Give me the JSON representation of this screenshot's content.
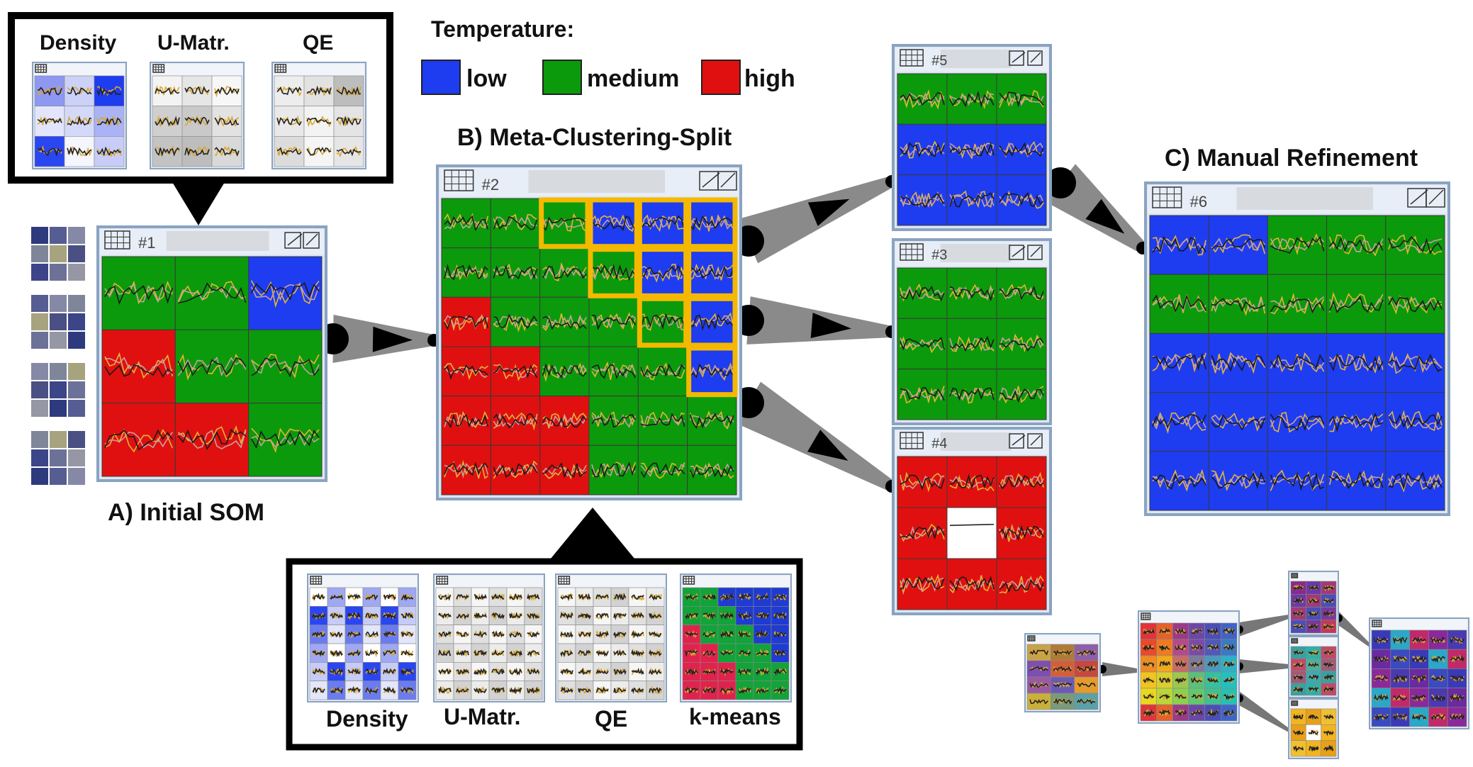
{
  "legend": {
    "title": "Temperature:",
    "items": [
      {
        "label": "low",
        "color": "#1e3cf0"
      },
      {
        "label": "medium",
        "color": "#0b9a0b"
      },
      {
        "label": "high",
        "color": "#e01010"
      }
    ]
  },
  "stages": {
    "a": "A) Initial SOM",
    "b": "B) Meta-Clustering-Split",
    "c": "C) Manual Refinement"
  },
  "windows": {
    "w1": "#1",
    "w2": "#2",
    "w3": "#3",
    "w4": "#4",
    "w5": "#5",
    "w6": "#6"
  },
  "inset_top": {
    "labels": [
      "Density",
      "U-Matr.",
      "QE"
    ]
  },
  "inset_bottom": {
    "labels": [
      "Density",
      "U-Matr.",
      "QE",
      "k-means"
    ]
  },
  "colors": {
    "low": "#1e3cf0",
    "medium": "#0b9a0b",
    "high": "#e01010",
    "highlight": "#f5b800",
    "window_border": "#8aa3c2",
    "titlebar": "#e8eef7"
  },
  "grids": {
    "w1": [
      "GGB",
      "RGG",
      "RRG"
    ],
    "w2": [
      "GGGBBB",
      "GGGGBB",
      "RGGGGB",
      "RRGGGB",
      "RRRGGG",
      "RRRGGG"
    ],
    "w5": [
      "GGG",
      "BBB",
      "BBB"
    ],
    "w3": [
      "GGG",
      "GGG",
      "GGG"
    ],
    "w4": [
      "RRR",
      "RWR",
      "RRR"
    ],
    "w6": [
      "BBGGG",
      "GGGGG",
      "BBBBB",
      "BBBBB",
      "BBBBB"
    ]
  }
}
